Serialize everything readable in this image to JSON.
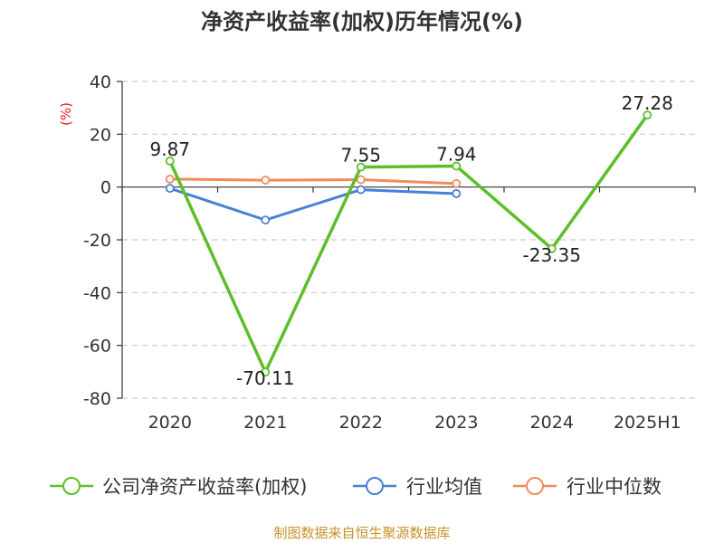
{
  "chart_data": {
    "type": "line",
    "title": "净资产收益率(加权)历年情况(%)",
    "ylabel": "(%)",
    "xlabel": "",
    "categories": [
      "2020",
      "2021",
      "2022",
      "2023",
      "2024",
      "2025H1"
    ],
    "ylim": [
      -80,
      40
    ],
    "yticks": [
      40,
      20,
      0,
      -20,
      -40,
      -60,
      -80
    ],
    "grid": true,
    "legend_position": "bottom",
    "series": [
      {
        "name": "公司净资产收益率(加权)",
        "color": "#5cbf2a",
        "values": [
          9.87,
          -70.11,
          7.55,
          7.94,
          -23.35,
          27.28
        ],
        "labels": [
          "9.87",
          "-70.11",
          "7.55",
          "7.94",
          "-23.35",
          "27.28"
        ]
      },
      {
        "name": "行业均值",
        "color": "#4a7fd6",
        "values": [
          -0.5,
          -12.5,
          -1.0,
          -2.5,
          null,
          null
        ]
      },
      {
        "name": "行业中位数",
        "color": "#f08c5a",
        "values": [
          3.0,
          2.6,
          2.8,
          1.3,
          null,
          null
        ]
      }
    ]
  },
  "source_text": "制图数据来自恒生聚源数据库"
}
